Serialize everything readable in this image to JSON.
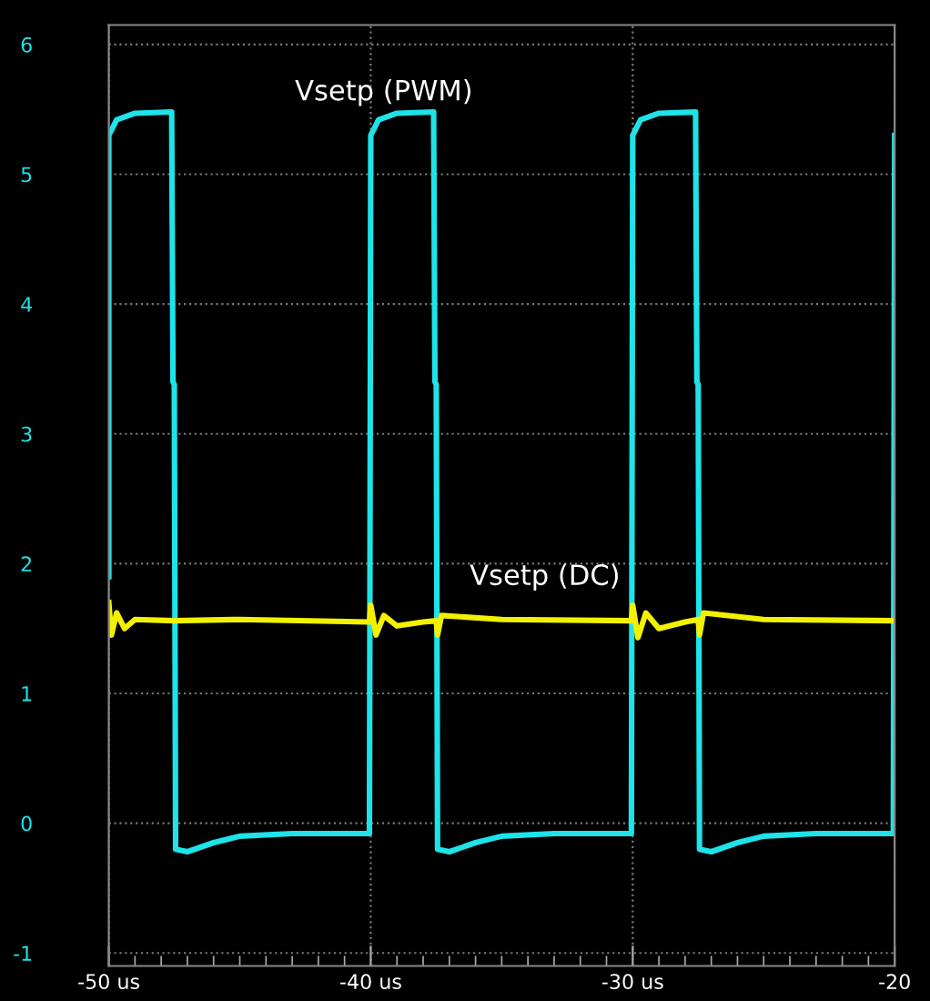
{
  "chart_data": {
    "type": "line",
    "xlim": [
      -50,
      -20
    ],
    "xticks": [
      {
        "value": -50,
        "label": "-50 us"
      },
      {
        "value": -40,
        "label": "-40 us"
      },
      {
        "value": -30,
        "label": "-30 us"
      },
      {
        "value": -20,
        "label": "-20"
      }
    ],
    "ylim": [
      -1.1,
      6.15
    ],
    "yticks": [
      -1,
      0,
      1,
      2,
      3,
      4,
      5,
      6
    ],
    "grid": true,
    "legend": false,
    "series": [
      {
        "name": "Vsetp (PWM)",
        "color": "#1ee3e8",
        "x": [
          -50,
          -50,
          -49.7,
          -49,
          -47.6,
          -47.55,
          -47.5,
          -47.45,
          -47,
          -46,
          -45,
          -43,
          -40.05,
          -40,
          -39.7,
          -39,
          -37.6,
          -37.55,
          -37.5,
          -37.45,
          -37,
          -36,
          -35,
          -33,
          -30.05,
          -30,
          -29.7,
          -29,
          -27.6,
          -27.55,
          -27.5,
          -27.45,
          -27,
          -26,
          -25,
          -23,
          -20.05,
          -20
        ],
        "values": [
          1.9,
          5.3,
          5.42,
          5.47,
          5.48,
          3.4,
          3.38,
          -0.2,
          -0.22,
          -0.15,
          -0.1,
          -0.08,
          -0.08,
          5.3,
          5.42,
          5.47,
          5.48,
          3.4,
          3.38,
          -0.2,
          -0.22,
          -0.15,
          -0.1,
          -0.08,
          -0.08,
          5.3,
          5.42,
          5.47,
          5.48,
          3.4,
          3.38,
          -0.2,
          -0.22,
          -0.15,
          -0.1,
          -0.08,
          -0.08,
          5.3
        ]
      },
      {
        "name": "Vsetp (DC)",
        "color": "#f2f200",
        "x": [
          -50,
          -49.9,
          -49.7,
          -49.4,
          -49,
          -47.5,
          -45,
          -40.05,
          -40,
          -39.8,
          -39.5,
          -39,
          -38,
          -37.5,
          -37.45,
          -37.3,
          -35,
          -30.05,
          -30,
          -29.8,
          -29.5,
          -29,
          -28,
          -27.5,
          -27.45,
          -27.3,
          -25,
          -20
        ],
        "values": [
          1.7,
          1.45,
          1.62,
          1.5,
          1.57,
          1.56,
          1.57,
          1.55,
          1.68,
          1.45,
          1.6,
          1.52,
          1.55,
          1.56,
          1.45,
          1.6,
          1.57,
          1.56,
          1.68,
          1.43,
          1.62,
          1.5,
          1.55,
          1.57,
          1.45,
          1.62,
          1.57,
          1.56
        ]
      }
    ]
  }
}
